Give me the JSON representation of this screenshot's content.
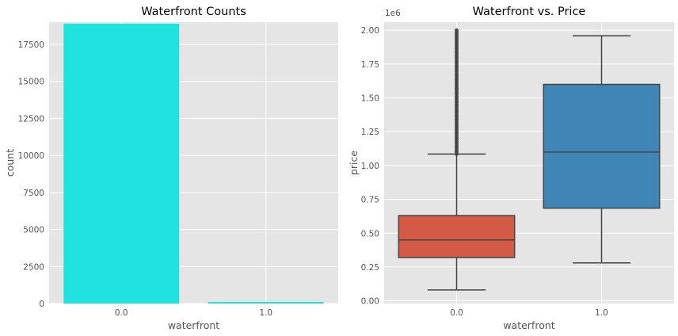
{
  "chart_data": [
    {
      "type": "bar",
      "title": "Waterfront Counts",
      "xlabel": "waterfront",
      "ylabel": "count",
      "categories": [
        "0.0",
        "1.0"
      ],
      "values": [
        18900,
        110
      ],
      "ylim": [
        0,
        19000
      ],
      "yticks": [
        0,
        2500,
        5000,
        7500,
        10000,
        12500,
        15000,
        17500
      ],
      "ytick_labels": [
        "0",
        "2500",
        "5000",
        "7500",
        "10000",
        "12500",
        "15000",
        "17500"
      ],
      "grid": true,
      "colors": [
        "#20e3e0",
        "#20e3e0"
      ]
    },
    {
      "type": "box",
      "title": "Waterfront vs. Price",
      "xlabel": "waterfront",
      "ylabel": "price",
      "scale_label": "1e6",
      "scale": 1000000,
      "categories": [
        "0.0",
        "1.0"
      ],
      "boxes": [
        {
          "whisker_low": 0.08,
          "q1": 0.32,
          "median": 0.45,
          "q3": 0.63,
          "whisker_high": 1.085,
          "outliers_from": 1.085,
          "outliers_to": 2.0,
          "color": "#d35a45"
        },
        {
          "whisker_low": 0.28,
          "q1": 0.685,
          "median": 1.1,
          "q3": 1.6,
          "whisker_high": 1.96,
          "color": "#3f85b5"
        }
      ],
      "ylim": [
        -0.02,
        2.06
      ],
      "yticks": [
        0.0,
        0.25,
        0.5,
        0.75,
        1.0,
        1.25,
        1.5,
        1.75,
        2.0
      ],
      "ytick_labels": [
        "0.00",
        "0.25",
        "0.50",
        "0.75",
        "1.00",
        "1.25",
        "1.50",
        "1.75",
        "2.00"
      ],
      "grid": true
    }
  ]
}
